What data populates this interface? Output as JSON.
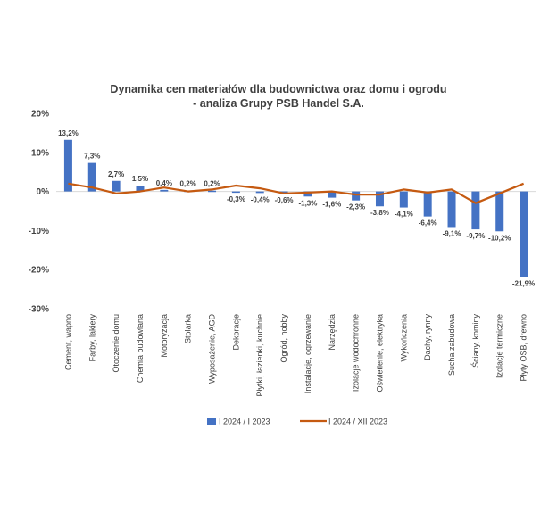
{
  "chart_data": {
    "type": "bar",
    "title_line1": "Dynamika cen materiałów dla budownictwa oraz domu i ogrodu",
    "title_line2": "- analiza Grupy PSB Handel S.A.",
    "categories": [
      "Cement, wapno",
      "Farby, lakiery",
      "Otoczenie domu",
      "Chemia budowlana",
      "Motoryzacja",
      "Stolarka",
      "Wyposażenie, AGD",
      "Dekoracje",
      "Płytki, łazienki, kuchnie",
      "Ogród, hobby",
      "Instalacje, ogrzewanie",
      "Narzędzia",
      "Izolacje wodochronne",
      "Oświetlenie, elektryka",
      "Wykończenia",
      "Dachy, rynny",
      "Sucha zabudowa",
      "Ściany, kominy",
      "Izolacje termiczne",
      "Płyty OSB, drewno"
    ],
    "series": [
      {
        "name": "I 2024 / I 2023",
        "type": "bar",
        "color": "#4472C4",
        "values": [
          13.2,
          7.3,
          2.7,
          1.5,
          0.4,
          0.2,
          0.2,
          -0.3,
          -0.4,
          -0.6,
          -1.3,
          -1.6,
          -2.3,
          -3.8,
          -4.1,
          -6.4,
          -9.1,
          -9.7,
          -10.2,
          -21.9
        ],
        "labels": [
          "13,2%",
          "7,3%",
          "2,7%",
          "1,5%",
          "0,4%",
          "0,2%",
          "0,2%",
          "-0,3%",
          "-0,4%",
          "-0,6%",
          "-1,3%",
          "-1,6%",
          "-2,3%",
          "-3,8%",
          "-4,1%",
          "-6,4%",
          "-9,1%",
          "-9,7%",
          "-10,2%",
          "-21,9%"
        ]
      },
      {
        "name": "I 2024 / XII 2023",
        "type": "line",
        "color": "#C55A11",
        "values": [
          2.0,
          1.0,
          -0.5,
          0.0,
          1.0,
          0.0,
          0.5,
          1.5,
          0.8,
          -0.5,
          -0.3,
          0.0,
          -0.8,
          -0.8,
          0.5,
          -0.3,
          0.5,
          -3.0,
          -0.5,
          2.0
        ]
      }
    ],
    "ylim": [
      -30,
      20
    ],
    "yticks": [
      20,
      10,
      0,
      -10,
      -20,
      -30
    ],
    "ytick_labels": [
      "20%",
      "10%",
      "0%",
      "-10%",
      "-20%",
      "-30%"
    ],
    "legend_position": "bottom"
  }
}
